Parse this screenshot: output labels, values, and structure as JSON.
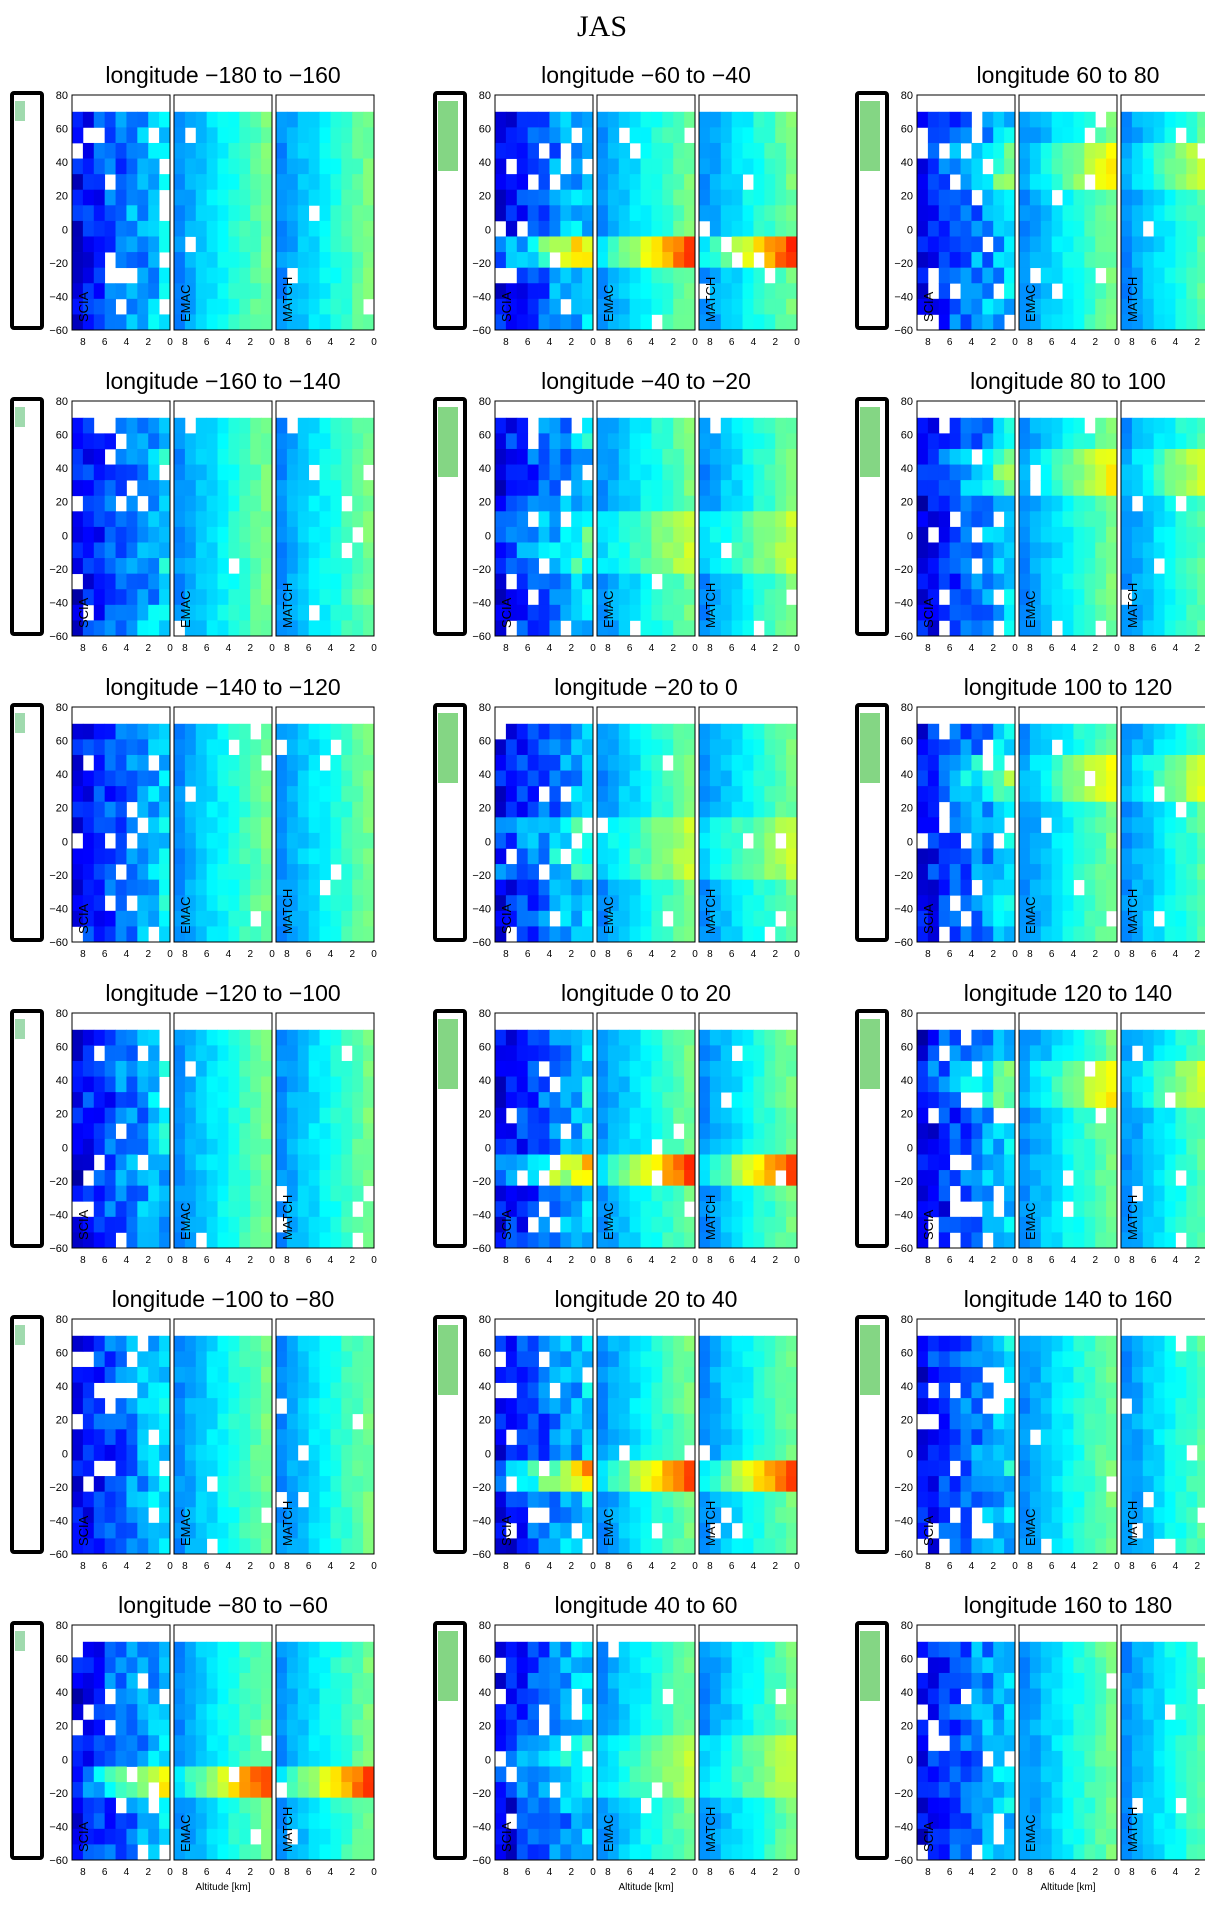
{
  "figure": {
    "title": "JAS",
    "xlabel": "Altitude [km]",
    "models": [
      "SCIA",
      "EMAC",
      "MATCH"
    ]
  },
  "chart_data": {
    "type": "heatmap",
    "title": "JAS",
    "xlabel": "Altitude [km]",
    "x_ticks": [
      8,
      6,
      4,
      2,
      0
    ],
    "x_range": [
      9,
      0
    ],
    "y_ticks": [
      -60,
      -40,
      -20,
      0,
      20,
      40,
      60,
      80
    ],
    "y_range": [
      -60,
      80
    ],
    "data_top_latitude": 70,
    "models": [
      "SCIA",
      "EMAC",
      "MATCH"
    ],
    "colormap": "jet (blue low, red high)",
    "columns": [
      [
        {
          "title": "longitude −180 to −160",
          "lon": [
            -180,
            -160
          ],
          "feature": "plain"
        },
        {
          "title": "longitude −160 to −140",
          "lon": [
            -160,
            -140
          ],
          "feature": "plain"
        },
        {
          "title": "longitude −140 to −120",
          "lon": [
            -140,
            -120
          ],
          "feature": "plain"
        },
        {
          "title": "longitude −120 to −100",
          "lon": [
            -120,
            -100
          ],
          "feature": "plain"
        },
        {
          "title": "longitude −100 to −80",
          "lon": [
            -100,
            -80
          ],
          "feature": "plain"
        },
        {
          "title": "longitude −80 to −60",
          "lon": [
            -80,
            -60
          ],
          "feature": "band"
        }
      ],
      [
        {
          "title": "longitude −60 to −40",
          "lon": [
            -60,
            -40
          ],
          "feature": "band"
        },
        {
          "title": "longitude −40 to −20",
          "lon": [
            -40,
            -20
          ],
          "feature": "mild"
        },
        {
          "title": "longitude −20 to 0",
          "lon": [
            -20,
            0
          ],
          "feature": "mild"
        },
        {
          "title": "longitude 0 to 20",
          "lon": [
            0,
            20
          ],
          "feature": "band"
        },
        {
          "title": "longitude 20 to 40",
          "lon": [
            20,
            40
          ],
          "feature": "band"
        },
        {
          "title": "longitude 40 to 60",
          "lon": [
            40,
            60
          ],
          "feature": "mild"
        }
      ],
      [
        {
          "title": "longitude 60 to 80",
          "lon": [
            60,
            80
          ],
          "feature": "north"
        },
        {
          "title": "longitude 80 to 100",
          "lon": [
            80,
            100
          ],
          "feature": "north"
        },
        {
          "title": "longitude 100 to 120",
          "lon": [
            100,
            120
          ],
          "feature": "north"
        },
        {
          "title": "longitude 120 to 140",
          "lon": [
            120,
            140
          ],
          "feature": "north"
        },
        {
          "title": "longitude 140 to 160",
          "lon": [
            140,
            160
          ],
          "feature": "plain"
        },
        {
          "title": "longitude 160 to 180",
          "lon": [
            160,
            180
          ],
          "feature": "plain"
        }
      ]
    ]
  }
}
